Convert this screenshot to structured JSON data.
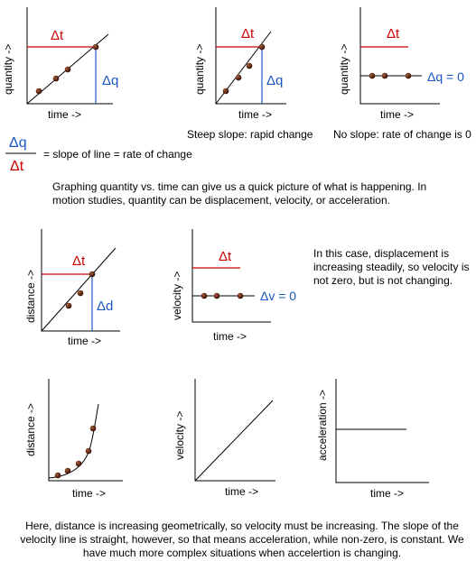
{
  "labels": {
    "quantity_axis": "quantity ->",
    "time_axis": "time ->",
    "distance_axis": "distance ->",
    "velocity_axis": "velocity ->",
    "acceleration_axis": "acceleration ->",
    "delta_t": "Δt",
    "delta_q": "Δq",
    "delta_q_zero": "Δq = 0",
    "delta_d": "Δd",
    "delta_v_zero": "Δv = 0"
  },
  "captions": {
    "steep": "Steep slope: rapid change",
    "none": "No slope: rate of change is 0"
  },
  "formula": {
    "numerator": "Δq",
    "denominator": "Δt",
    "text": "= slope of line = rate of change"
  },
  "paragraphs": {
    "intro": "Graphing quantity vs. time can give us a quick picture of what is happening.  In motion studies, quantity can be displacement, velocity, or acceleration.",
    "steady": "In this case, displacement is increasing steadily, so velocity is not zero, but is not changing.",
    "geometric": "Here, distance is increasing geometrically, so velocity must be increasing.  The slope of the velocity line is straight, however, so that means acceleration, while non-zero, is constant.  We have much more complex situations when accelertion is changing."
  },
  "colors": {
    "red": "#cc0000",
    "blue": "#1a56c4",
    "dot": "#5a1a10",
    "axis": "#000000"
  }
}
